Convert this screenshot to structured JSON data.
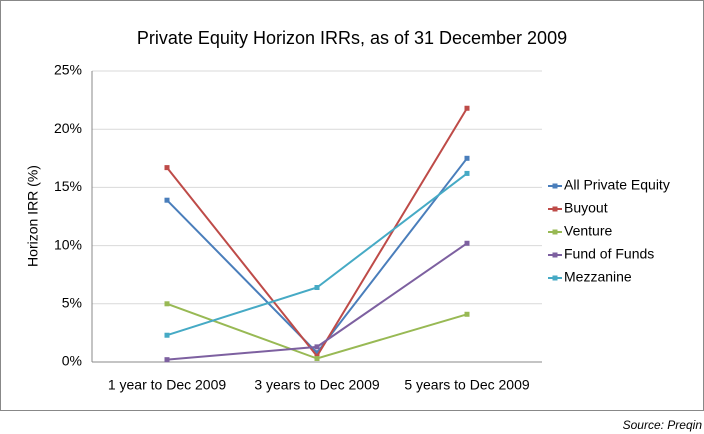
{
  "chart_data": {
    "type": "line",
    "title": "Private Equity Horizon IRRs, as of 31 December 2009",
    "y_label": "Horizon IRR (%)",
    "source": "Source: Preqin",
    "categories": [
      "1 year to Dec 2009",
      "3 years to Dec 2009",
      "5 years to Dec 2009"
    ],
    "series": [
      {
        "name": "All Private Equity",
        "color": "#4a7ebb",
        "values": [
          13.9,
          0.8,
          17.5
        ]
      },
      {
        "name": "Buyout",
        "color": "#be4b48",
        "values": [
          16.7,
          0.5,
          21.8
        ]
      },
      {
        "name": "Venture",
        "color": "#98b954",
        "values": [
          5.0,
          0.3,
          4.1
        ]
      },
      {
        "name": "Fund of Funds",
        "color": "#7d60a0",
        "values": [
          0.2,
          1.3,
          10.2
        ]
      },
      {
        "name": "Mezzanine",
        "color": "#46aac5",
        "values": [
          2.3,
          6.4,
          16.2
        ]
      }
    ],
    "ylim": [
      0,
      25
    ],
    "yticks": [
      {
        "value": 0,
        "label": "0%"
      },
      {
        "value": 5,
        "label": "5%"
      },
      {
        "value": 10,
        "label": "10%"
      },
      {
        "value": 15,
        "label": "15%"
      },
      {
        "value": 20,
        "label": "20%"
      },
      {
        "value": 25,
        "label": "25%"
      }
    ],
    "grid": true,
    "legend": "right"
  }
}
